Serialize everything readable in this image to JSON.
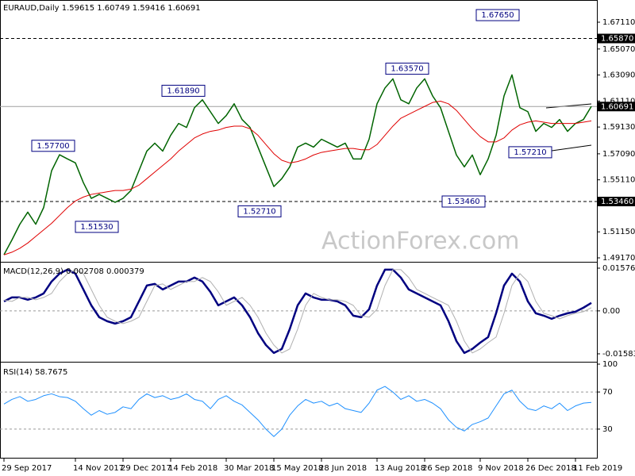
{
  "chart_data": [
    {
      "type": "line",
      "title": "EURAUD,Daily 1.59615 1.60749 1.59416 1.60691",
      "watermark": "ActionForex.com",
      "ylim": [
        1.4887,
        1.688
      ],
      "yticks": [
        {
          "value": 1.6711,
          "label": "1.67110"
        },
        {
          "value": 1.6507,
          "label": "1.65070"
        },
        {
          "value": 1.6309,
          "label": "1.63090"
        },
        {
          "value": 1.6111,
          "label": "1.61110"
        },
        {
          "value": 1.5913,
          "label": "1.59130"
        },
        {
          "value": 1.5709,
          "label": "1.57090"
        },
        {
          "value": 1.5511,
          "label": "1.55110"
        },
        {
          "value": 1.5115,
          "label": "1.51150"
        },
        {
          "value": 1.4917,
          "label": "1.49170"
        }
      ],
      "grid": false,
      "levels": [
        {
          "value": 1.6587,
          "label": "1.65870",
          "color": "#000000",
          "dashed": true
        },
        {
          "value": 1.60691,
          "label": "1.60691",
          "color": "#a0a0a0",
          "dashed": false
        },
        {
          "value": 1.5346,
          "label": "1.53460",
          "color": "#000000",
          "dashed": true
        }
      ],
      "annotations": [
        {
          "value": 1.6765,
          "label": "1.67650"
        },
        {
          "value": 1.6357,
          "label": "1.63570"
        },
        {
          "value": 1.6189,
          "label": "1.61890"
        },
        {
          "value": 1.577,
          "label": "1.57700"
        },
        {
          "value": 1.5153,
          "label": "1.51530"
        },
        {
          "value": 1.5271,
          "label": "1.52710"
        },
        {
          "value": 1.5346,
          "label": "1.53460"
        },
        {
          "value": 1.5721,
          "label": "1.57210"
        }
      ],
      "series": [
        {
          "color": "#006400",
          "width": 1.5,
          "values": [
            1.4941,
            1.5053,
            1.5173,
            1.5265,
            1.5173,
            1.53,
            1.558,
            1.5702,
            1.567,
            1.564,
            1.549,
            1.537,
            1.54,
            1.537,
            1.534,
            1.537,
            1.543,
            1.558,
            1.573,
            1.579,
            1.573,
            1.585,
            1.594,
            1.591,
            1.606,
            1.612,
            1.603,
            1.594,
            1.6,
            1.609,
            1.597,
            1.591,
            1.576,
            1.561,
            1.546,
            1.552,
            1.561,
            1.576,
            1.579,
            1.576,
            1.582,
            1.579,
            1.576,
            1.579,
            1.567,
            1.567,
            1.582,
            1.609,
            1.621,
            1.628,
            1.612,
            1.609,
            1.621,
            1.628,
            1.615,
            1.606,
            1.588,
            1.57,
            1.561,
            1.57,
            1.555,
            1.567,
            1.585,
            1.615,
            1.631,
            1.606,
            1.603,
            1.588,
            1.594,
            1.591,
            1.597,
            1.588,
            1.594,
            1.597,
            1.607
          ]
        },
        {
          "color": "#e00000",
          "width": 1,
          "values": [
            1.494,
            1.496,
            1.499,
            1.503,
            1.508,
            1.513,
            1.518,
            1.524,
            1.53,
            1.535,
            1.538,
            1.54,
            1.541,
            1.542,
            1.543,
            1.543,
            1.544,
            1.547,
            1.552,
            1.557,
            1.562,
            1.567,
            1.573,
            1.578,
            1.583,
            1.586,
            1.588,
            1.589,
            1.591,
            1.592,
            1.592,
            1.59,
            1.585,
            1.578,
            1.571,
            1.566,
            1.564,
            1.565,
            1.567,
            1.57,
            1.572,
            1.573,
            1.574,
            1.575,
            1.575,
            1.574,
            1.574,
            1.578,
            1.585,
            1.592,
            1.598,
            1.601,
            1.604,
            1.607,
            1.61,
            1.611,
            1.609,
            1.604,
            1.597,
            1.59,
            1.584,
            1.58,
            1.58,
            1.583,
            1.589,
            1.593,
            1.595,
            1.596,
            1.595,
            1.594,
            1.594,
            1.594,
            1.594,
            1.595,
            1.596
          ]
        }
      ]
    },
    {
      "type": "line",
      "title": "MACD(12,26,9) 0.002708 0.000379",
      "ylim": [
        -0.018467,
        0.017517
      ],
      "yticks": [
        0.015762,
        {
          "value": 0,
          "label": "0.00"
        },
        -0.015834
      ],
      "grid": true,
      "series": [
        {
          "color": "#000080",
          "width": 2.5,
          "values": [
            0.00351,
            0.00497,
            0.00497,
            0.0041,
            0.00497,
            0.00644,
            0.01083,
            0.01375,
            0.01521,
            0.01375,
            0.0079,
            0.00205,
            -0.00234,
            -0.0038,
            -0.00468,
            -0.0038,
            -0.00234,
            0.00351,
            0.00936,
            0.00995,
            0.0079,
            0.00936,
            0.01083,
            0.01083,
            0.01229,
            0.01083,
            0.00702,
            0.00205,
            0.00351,
            0.00497,
            0.00205,
            -0.00234,
            -0.00819,
            -0.01258,
            -0.01551,
            -0.01404,
            -0.00673,
            0.00205,
            0.00644,
            0.00497,
            0.0041,
            0.0041,
            0.00351,
            0.00205,
            -0.00176,
            -0.00234,
            0.00059,
            0.00936,
            0.01521,
            0.01521,
            0.01229,
            0.0079,
            0.00644,
            0.00497,
            0.00351,
            0.00205,
            -0.0038,
            -0.01112,
            -0.01551,
            -0.01404,
            -0.0117,
            -0.00965,
            -0.00088,
            0.00936,
            0.01375,
            0.01083,
            0.00351,
            -0.00088,
            -0.00176,
            -0.00293,
            -0.00176,
            -0.00088,
            -0.00029,
            0.00117,
            0.00293
          ]
        },
        {
          "color": "#b0b0b0",
          "width": 1,
          "values": [
            0.004,
            0.00351,
            0.00497,
            0.00497,
            0.0041,
            0.00497,
            0.00644,
            0.01083,
            0.01375,
            0.01521,
            0.01375,
            0.0079,
            0.00205,
            -0.00234,
            -0.0038,
            -0.00468,
            -0.0038,
            -0.00234,
            0.00351,
            0.00936,
            0.00995,
            0.0079,
            0.00936,
            0.01083,
            0.01083,
            0.01229,
            0.01083,
            0.00702,
            0.00205,
            0.00351,
            0.00497,
            0.00205,
            -0.00234,
            -0.00819,
            -0.01258,
            -0.01551,
            -0.01404,
            -0.00673,
            0.00205,
            0.00644,
            0.00497,
            0.0041,
            0.0041,
            0.00351,
            0.00205,
            -0.00176,
            -0.00234,
            0.00059,
            0.00936,
            0.01521,
            0.01521,
            0.01229,
            0.0079,
            0.00644,
            0.00497,
            0.00351,
            0.00205,
            -0.0038,
            -0.01112,
            -0.01551,
            -0.01404,
            -0.0117,
            -0.00965,
            -0.00088,
            0.00936,
            0.01375,
            0.01083,
            0.00351,
            -0.00088,
            -0.00176,
            -0.00293,
            -0.00176,
            -0.00088,
            -0.00029,
            0.00117
          ]
        }
      ]
    },
    {
      "type": "line",
      "title": "RSI(14) 58.7675",
      "ylim": [
        0,
        100
      ],
      "yticks": [
        100,
        70,
        30
      ],
      "grid": true,
      "categories": [
        "29 Sep 2017",
        null,
        null,
        null,
        null,
        null,
        null,
        null,
        null,
        "14 Nov 2017",
        null,
        null,
        null,
        null,
        null,
        "29 Dec 2017",
        null,
        null,
        null,
        null,
        null,
        "14 Feb 2018",
        null,
        null,
        null,
        null,
        null,
        null,
        "30 Mar 2018",
        null,
        null,
        null,
        null,
        null,
        "15 May 2018",
        null,
        null,
        null,
        null,
        null,
        "28 Jun 2018",
        null,
        null,
        null,
        null,
        null,
        null,
        "13 Aug 2018",
        null,
        null,
        null,
        null,
        null,
        "26 Sep 2018",
        null,
        null,
        null,
        null,
        null,
        null,
        "9 Nov 2018",
        null,
        null,
        null,
        null,
        null,
        "26 Dec 2018",
        null,
        null,
        null,
        null,
        null,
        "11 Feb 2019",
        null,
        null
      ],
      "series": [
        {
          "color": "#1e90ff",
          "width": 1,
          "values": [
            57,
            62,
            65,
            60,
            62,
            66,
            68,
            65,
            64,
            60,
            52,
            45,
            50,
            46,
            48,
            54,
            52,
            62,
            68,
            64,
            66,
            62,
            64,
            68,
            62,
            60,
            52,
            62,
            66,
            60,
            56,
            48,
            40,
            30,
            22,
            30,
            45,
            55,
            62,
            58,
            60,
            55,
            58,
            52,
            50,
            48,
            58,
            72,
            76,
            70,
            62,
            66,
            60,
            62,
            58,
            52,
            40,
            32,
            28,
            35,
            38,
            42,
            55,
            68,
            72,
            60,
            52,
            50,
            55,
            52,
            58,
            50,
            55,
            58,
            58.8
          ]
        }
      ]
    }
  ]
}
